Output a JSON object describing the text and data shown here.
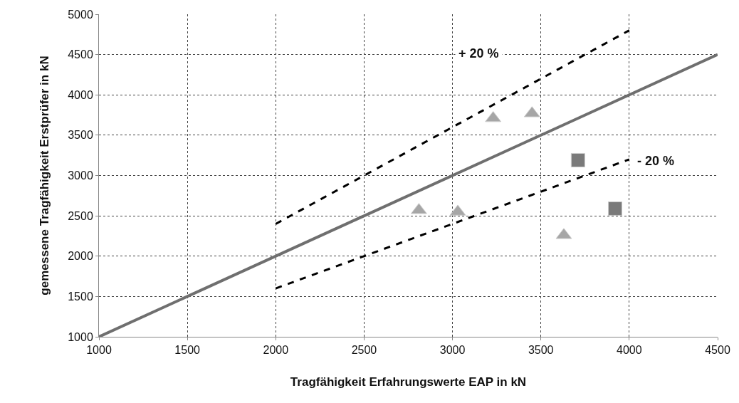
{
  "chart_data": {
    "type": "scatter",
    "xlabel": "Tragfähigkeit Erfahrungswerte EAP in kN",
    "ylabel": "gemessene Tragfähigkeit Erstprüfer in kN",
    "xlim": [
      1000,
      4500
    ],
    "xticks": [
      1000,
      1500,
      2000,
      2500,
      3000,
      3500,
      4000,
      4500
    ],
    "ylim": [
      1000,
      5000
    ],
    "yticks": [
      1000,
      1500,
      2000,
      2500,
      3000,
      3500,
      4000,
      4500,
      5000
    ],
    "grid": true,
    "series": [
      {
        "type": "line",
        "x": [
          1000,
          4500
        ],
        "values": [
          1000,
          4500
        ],
        "color": "#6f6f6f",
        "marker": "none",
        "line_style": "solid"
      },
      {
        "type": "line",
        "x": [
          2000,
          4000
        ],
        "values": [
          2400,
          4800
        ],
        "color": "#000000",
        "marker": "none",
        "line_style": "dashed"
      },
      {
        "type": "line",
        "x": [
          2000,
          4000
        ],
        "values": [
          1600,
          3200
        ],
        "color": "#000000",
        "marker": "none",
        "line_style": "dashed"
      },
      {
        "x": [
          2810,
          3030,
          3230,
          3450,
          3630
        ],
        "values": [
          2570,
          2550,
          3710,
          3770,
          2260
        ],
        "color": "#a6a6a6",
        "marker": "triangle"
      },
      {
        "x": [
          3710,
          3920
        ],
        "values": [
          3190,
          2590
        ],
        "color": "#7a7a7a",
        "marker": "square"
      }
    ],
    "annotations": [
      "+ 20 %",
      "- 20 %"
    ]
  }
}
